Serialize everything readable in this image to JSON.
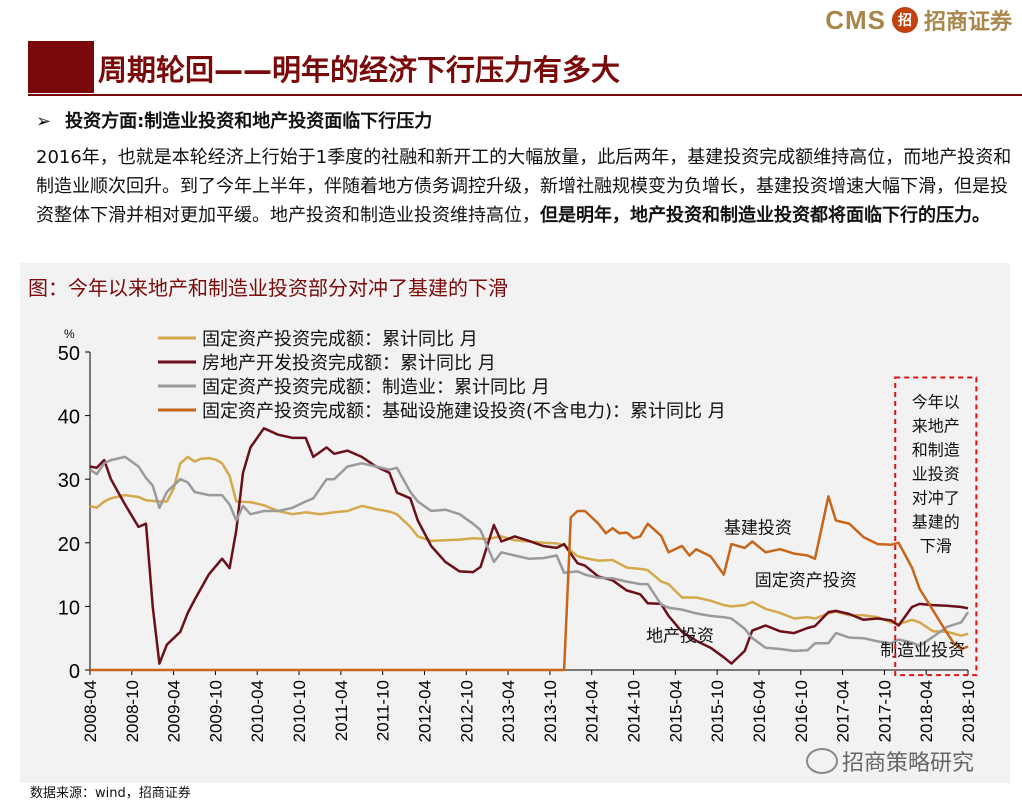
{
  "logo": {
    "cms": "CMS",
    "mark": "招",
    "cn": "招商证券"
  },
  "title": "周期轮回——明年的经济下行压力有多大",
  "bullet": {
    "arrow": "➢",
    "text": "投资方面:制造业投资和地产投资面临下行压力"
  },
  "paragraph": {
    "normal": "2016年，也就是本轮经济上行始于1季度的社融和新开工的大幅放量，此后两年，基建投资完成额维持高位，而地产投资和制造业顺次回升。到了今年上半年，伴随着地方债务调控升级，新增社融规模变为负增长，基建投资增速大幅下滑，但是投资整体下滑并相对更加平缓。地产投资和制造业投资维持高位，",
    "bold": "但是明年，地产投资和制造业投资都将面临下行的压力。"
  },
  "chart_title": "图：今年以来地产和制造业投资部分对冲了基建的下滑",
  "source": "数据来源：wind，招商证券",
  "watermark": "招商策略研究",
  "chart_data": {
    "type": "line",
    "ylabel": "%",
    "ylim": [
      0,
      50
    ],
    "yticks": [
      "0",
      "10",
      "20",
      "30",
      "40",
      "50"
    ],
    "xlim": [
      2008.25,
      2018.75
    ],
    "xticks": [
      "2008-04",
      "2008-10",
      "2009-04",
      "2009-10",
      "2010-04",
      "2010-10",
      "2011-04",
      "2011-10",
      "2012-04",
      "2012-10",
      "2013-04",
      "2013-10",
      "2014-04",
      "2014-10",
      "2015-04",
      "2015-10",
      "2016-04",
      "2016-10",
      "2017-04",
      "2017-10",
      "2018-04",
      "2018-10"
    ],
    "legend": [
      {
        "name": "固定资产投资完成额：累计同比 月",
        "color": "#d4a84b"
      },
      {
        "name": "房地产开发投资完成额：累计同比 月",
        "color": "#6b0f1a"
      },
      {
        "name": "固定资产投资完成额：制造业：累计同比 月",
        "color": "#9a9a9a"
      },
      {
        "name": "固定资产投资完成额：基础设施建设投资(不含电力)：累计同比 月",
        "color": "#c7651a"
      }
    ],
    "series": [
      {
        "name": "固定资产投资完成额：累计同比 月",
        "color": "#d4a84b",
        "points": [
          [
            2008.25,
            25.8
          ],
          [
            2008.33,
            25.5
          ],
          [
            2008.42,
            26.5
          ],
          [
            2008.5,
            27
          ],
          [
            2008.67,
            27.5
          ],
          [
            2008.83,
            27.2
          ],
          [
            2008.92,
            26.7
          ],
          [
            2009.08,
            26.5
          ],
          [
            2009.17,
            26.5
          ],
          [
            2009.25,
            28.5
          ],
          [
            2009.33,
            32.5
          ],
          [
            2009.42,
            33.5
          ],
          [
            2009.5,
            32.8
          ],
          [
            2009.58,
            33.2
          ],
          [
            2009.67,
            33.3
          ],
          [
            2009.75,
            33.1
          ],
          [
            2009.83,
            32.5
          ],
          [
            2009.92,
            30.5
          ],
          [
            2010.0,
            26.5
          ],
          [
            2010.17,
            26.4
          ],
          [
            2010.33,
            25.9
          ],
          [
            2010.5,
            25.0
          ],
          [
            2010.67,
            24.5
          ],
          [
            2010.83,
            24.8
          ],
          [
            2011.0,
            24.5
          ],
          [
            2011.17,
            24.8
          ],
          [
            2011.33,
            25.0
          ],
          [
            2011.5,
            25.8
          ],
          [
            2011.67,
            25.3
          ],
          [
            2011.83,
            24.9
          ],
          [
            2011.92,
            24.5
          ],
          [
            2012.08,
            22.5
          ],
          [
            2012.17,
            21.0
          ],
          [
            2012.33,
            20.3
          ],
          [
            2012.5,
            20.4
          ],
          [
            2012.67,
            20.5
          ],
          [
            2012.83,
            20.7
          ],
          [
            2013.0,
            20.6
          ],
          [
            2013.17,
            21.0
          ],
          [
            2013.33,
            20.4
          ],
          [
            2013.5,
            20.2
          ],
          [
            2013.67,
            20.0
          ],
          [
            2013.83,
            19.9
          ],
          [
            2013.92,
            19.6
          ],
          [
            2014.08,
            17.9
          ],
          [
            2014.17,
            17.6
          ],
          [
            2014.33,
            17.2
          ],
          [
            2014.5,
            17.3
          ],
          [
            2014.67,
            16.1
          ],
          [
            2014.83,
            15.9
          ],
          [
            2014.92,
            15.7
          ],
          [
            2015.08,
            13.9
          ],
          [
            2015.17,
            13.5
          ],
          [
            2015.33,
            11.4
          ],
          [
            2015.5,
            11.4
          ],
          [
            2015.67,
            10.9
          ],
          [
            2015.83,
            10.2
          ],
          [
            2015.92,
            10.0
          ],
          [
            2016.08,
            10.2
          ],
          [
            2016.17,
            10.7
          ],
          [
            2016.33,
            9.6
          ],
          [
            2016.5,
            9.0
          ],
          [
            2016.67,
            8.1
          ],
          [
            2016.83,
            8.3
          ],
          [
            2016.92,
            8.1
          ],
          [
            2017.08,
            8.9
          ],
          [
            2017.17,
            9.2
          ],
          [
            2017.33,
            8.6
          ],
          [
            2017.5,
            8.6
          ],
          [
            2017.67,
            8.3
          ],
          [
            2017.83,
            7.5
          ],
          [
            2017.92,
            7.2
          ],
          [
            2018.08,
            7.9
          ],
          [
            2018.17,
            7.5
          ],
          [
            2018.33,
            6.1
          ],
          [
            2018.5,
            6.0
          ],
          [
            2018.67,
            5.4
          ],
          [
            2018.75,
            5.7
          ]
        ]
      },
      {
        "name": "房地产开发投资完成额：累计同比 月",
        "color": "#6b0f1a",
        "points": [
          [
            2008.25,
            32.0
          ],
          [
            2008.33,
            31.8
          ],
          [
            2008.42,
            33.0
          ],
          [
            2008.5,
            30.0
          ],
          [
            2008.67,
            26.0
          ],
          [
            2008.83,
            22.5
          ],
          [
            2008.92,
            23.0
          ],
          [
            2009.0,
            10.0
          ],
          [
            2009.08,
            1.0
          ],
          [
            2009.17,
            4.0
          ],
          [
            2009.33,
            6.0
          ],
          [
            2009.42,
            9.0
          ],
          [
            2009.5,
            11.0
          ],
          [
            2009.67,
            15.0
          ],
          [
            2009.83,
            17.5
          ],
          [
            2009.92,
            16.0
          ],
          [
            2010.0,
            22.0
          ],
          [
            2010.08,
            31.0
          ],
          [
            2010.17,
            35.0
          ],
          [
            2010.33,
            38.0
          ],
          [
            2010.5,
            37.0
          ],
          [
            2010.67,
            36.5
          ],
          [
            2010.83,
            36.5
          ],
          [
            2010.92,
            33.5
          ],
          [
            2011.08,
            35.0
          ],
          [
            2011.17,
            34.0
          ],
          [
            2011.33,
            34.5
          ],
          [
            2011.5,
            33.5
          ],
          [
            2011.67,
            32.0
          ],
          [
            2011.83,
            31.0
          ],
          [
            2011.92,
            27.9
          ],
          [
            2012.08,
            27.0
          ],
          [
            2012.17,
            23.5
          ],
          [
            2012.33,
            19.5
          ],
          [
            2012.5,
            17.0
          ],
          [
            2012.67,
            15.5
          ],
          [
            2012.83,
            15.4
          ],
          [
            2012.92,
            16.2
          ],
          [
            2013.08,
            22.8
          ],
          [
            2013.17,
            20.2
          ],
          [
            2013.33,
            21.0
          ],
          [
            2013.5,
            20.3
          ],
          [
            2013.67,
            19.5
          ],
          [
            2013.83,
            19.2
          ],
          [
            2013.92,
            19.8
          ],
          [
            2014.08,
            16.8
          ],
          [
            2014.17,
            16.4
          ],
          [
            2014.33,
            14.7
          ],
          [
            2014.5,
            14.1
          ],
          [
            2014.67,
            12.5
          ],
          [
            2014.83,
            11.9
          ],
          [
            2014.92,
            10.5
          ],
          [
            2015.08,
            10.4
          ],
          [
            2015.17,
            8.5
          ],
          [
            2015.33,
            6.0
          ],
          [
            2015.5,
            4.6
          ],
          [
            2015.67,
            3.5
          ],
          [
            2015.83,
            2.0
          ],
          [
            2015.92,
            1.0
          ],
          [
            2016.08,
            3.0
          ],
          [
            2016.17,
            6.2
          ],
          [
            2016.33,
            7.0
          ],
          [
            2016.5,
            6.1
          ],
          [
            2016.67,
            5.8
          ],
          [
            2016.83,
            6.6
          ],
          [
            2016.92,
            6.9
          ],
          [
            2017.08,
            9.1
          ],
          [
            2017.17,
            9.3
          ],
          [
            2017.33,
            8.8
          ],
          [
            2017.5,
            7.9
          ],
          [
            2017.67,
            8.1
          ],
          [
            2017.83,
            7.8
          ],
          [
            2017.92,
            7.0
          ],
          [
            2018.08,
            9.9
          ],
          [
            2018.17,
            10.4
          ],
          [
            2018.33,
            10.2
          ],
          [
            2018.5,
            10.1
          ],
          [
            2018.67,
            9.9
          ],
          [
            2018.75,
            9.7
          ]
        ]
      },
      {
        "name": "固定资产投资完成额：制造业：累计同比 月",
        "color": "#9a9a9a",
        "points": [
          [
            2008.25,
            31.5
          ],
          [
            2008.33,
            30.8
          ],
          [
            2008.42,
            32.5
          ],
          [
            2008.5,
            33.0
          ],
          [
            2008.67,
            33.5
          ],
          [
            2008.83,
            32.0
          ],
          [
            2008.92,
            30.2
          ],
          [
            2009.0,
            29.0
          ],
          [
            2009.08,
            25.5
          ],
          [
            2009.17,
            28.0
          ],
          [
            2009.33,
            30.0
          ],
          [
            2009.42,
            29.5
          ],
          [
            2009.5,
            28.0
          ],
          [
            2009.67,
            27.5
          ],
          [
            2009.83,
            27.5
          ],
          [
            2009.92,
            26.0
          ],
          [
            2010.0,
            23.5
          ],
          [
            2010.08,
            25.8
          ],
          [
            2010.17,
            24.5
          ],
          [
            2010.33,
            25.0
          ],
          [
            2010.5,
            25.0
          ],
          [
            2010.67,
            25.5
          ],
          [
            2010.83,
            26.5
          ],
          [
            2010.92,
            27.0
          ],
          [
            2011.08,
            30.0
          ],
          [
            2011.17,
            30.0
          ],
          [
            2011.33,
            32.0
          ],
          [
            2011.5,
            32.5
          ],
          [
            2011.67,
            32.0
          ],
          [
            2011.83,
            31.5
          ],
          [
            2011.92,
            31.8
          ],
          [
            2012.08,
            28.0
          ],
          [
            2012.17,
            26.5
          ],
          [
            2012.33,
            25.0
          ],
          [
            2012.5,
            25.2
          ],
          [
            2012.67,
            24.5
          ],
          [
            2012.83,
            23.0
          ],
          [
            2012.92,
            22.0
          ],
          [
            2013.08,
            17.0
          ],
          [
            2013.17,
            18.5
          ],
          [
            2013.33,
            18.0
          ],
          [
            2013.5,
            17.5
          ],
          [
            2013.67,
            17.6
          ],
          [
            2013.83,
            18.0
          ],
          [
            2013.92,
            15.3
          ],
          [
            2014.08,
            15.5
          ],
          [
            2014.17,
            15.0
          ],
          [
            2014.33,
            14.5
          ],
          [
            2014.5,
            14.4
          ],
          [
            2014.67,
            13.9
          ],
          [
            2014.83,
            13.5
          ],
          [
            2014.92,
            13.5
          ],
          [
            2015.08,
            10.3
          ],
          [
            2015.17,
            9.8
          ],
          [
            2015.33,
            9.5
          ],
          [
            2015.5,
            8.9
          ],
          [
            2015.67,
            8.5
          ],
          [
            2015.83,
            8.3
          ],
          [
            2015.92,
            8.1
          ],
          [
            2016.08,
            6.5
          ],
          [
            2016.17,
            5.0
          ],
          [
            2016.33,
            3.5
          ],
          [
            2016.5,
            3.3
          ],
          [
            2016.67,
            3.0
          ],
          [
            2016.83,
            3.1
          ],
          [
            2016.92,
            4.2
          ],
          [
            2017.08,
            4.2
          ],
          [
            2017.17,
            5.8
          ],
          [
            2017.33,
            5.1
          ],
          [
            2017.5,
            5.0
          ],
          [
            2017.67,
            4.5
          ],
          [
            2017.83,
            4.2
          ],
          [
            2017.92,
            4.8
          ],
          [
            2018.08,
            4.3
          ],
          [
            2018.17,
            3.8
          ],
          [
            2018.33,
            5.2
          ],
          [
            2018.5,
            6.8
          ],
          [
            2018.67,
            7.5
          ],
          [
            2018.75,
            9.1
          ]
        ]
      },
      {
        "name": "固定资产投资完成额：基础设施建设投资(不含电力)：累计同比 月",
        "color": "#c7651a",
        "points": [
          [
            2008.25,
            0
          ],
          [
            2013.92,
            0
          ],
          [
            2014.0,
            24.0
          ],
          [
            2014.08,
            25.0
          ],
          [
            2014.17,
            25.0
          ],
          [
            2014.33,
            23.0
          ],
          [
            2014.42,
            21.5
          ],
          [
            2014.5,
            22.3
          ],
          [
            2014.58,
            21.5
          ],
          [
            2014.67,
            21.6
          ],
          [
            2014.75,
            20.7
          ],
          [
            2014.83,
            21.0
          ],
          [
            2014.92,
            23.0
          ],
          [
            2015.08,
            21.1
          ],
          [
            2015.17,
            18.5
          ],
          [
            2015.33,
            19.5
          ],
          [
            2015.42,
            18.0
          ],
          [
            2015.5,
            19.0
          ],
          [
            2015.67,
            17.9
          ],
          [
            2015.83,
            15.0
          ],
          [
            2015.92,
            19.8
          ],
          [
            2016.08,
            19.2
          ],
          [
            2016.17,
            20.2
          ],
          [
            2016.33,
            18.5
          ],
          [
            2016.5,
            19.0
          ],
          [
            2016.67,
            18.3
          ],
          [
            2016.83,
            18.0
          ],
          [
            2016.92,
            17.5
          ],
          [
            2017.08,
            27.3
          ],
          [
            2017.17,
            23.5
          ],
          [
            2017.33,
            23.0
          ],
          [
            2017.5,
            20.9
          ],
          [
            2017.67,
            19.8
          ],
          [
            2017.83,
            19.7
          ],
          [
            2017.92,
            20.0
          ],
          [
            2018.08,
            16.1
          ],
          [
            2018.17,
            12.8
          ],
          [
            2018.33,
            9.4
          ],
          [
            2018.5,
            5.8
          ],
          [
            2018.58,
            4.2
          ],
          [
            2018.67,
            3.3
          ],
          [
            2018.75,
            3.7
          ]
        ]
      }
    ],
    "annotations": [
      {
        "text": "基建投资",
        "x": 2015.83,
        "y": 21.5
      },
      {
        "text": "固定资产投资",
        "x": 2016.2,
        "y": 13.2
      },
      {
        "text": "地产投资",
        "x": 2014.9,
        "y": 4.5
      },
      {
        "text": "制造业投资",
        "x": 2017.7,
        "y": 2.2
      }
    ],
    "highlight_box": {
      "x0": 2017.88,
      "x1": 2018.85,
      "y0": -0.8,
      "y1": 46,
      "lines": [
        "今年以",
        "来地产",
        "和制造",
        "业投资",
        "对冲了",
        "基建的",
        "下滑"
      ]
    }
  }
}
